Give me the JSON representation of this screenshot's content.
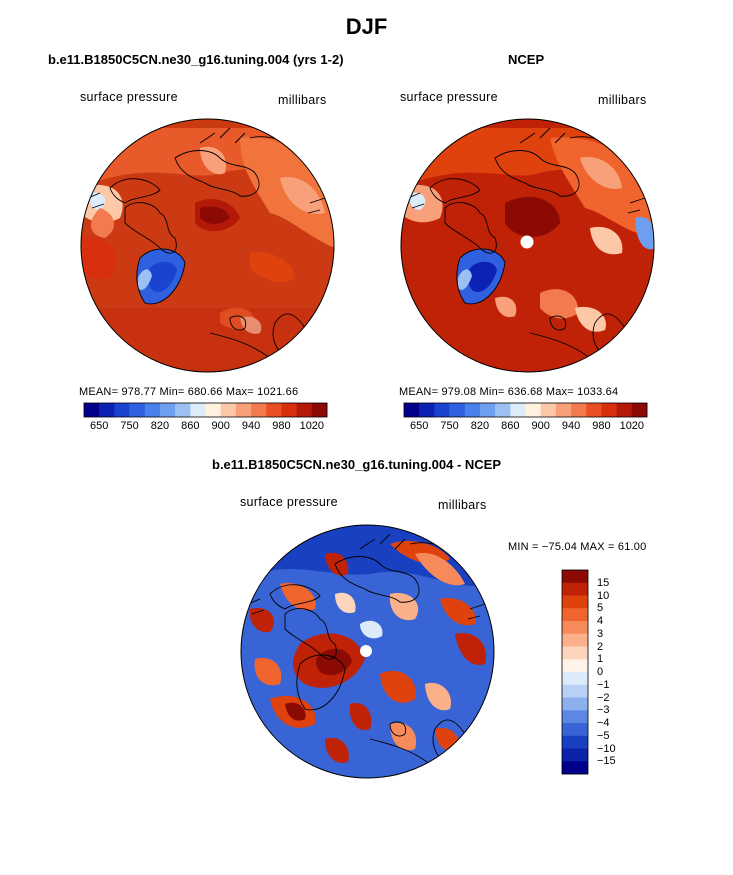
{
  "page": {
    "title": "DJF"
  },
  "panels": [
    {
      "title": "b.e11.B1850C5CN.ne30_g16.tuning.004 (yrs 1-2)",
      "variable": "surface pressure",
      "units": "millibars",
      "stats": "MEAN= 978.77   Min= 680.66   Max= 1021.66"
    },
    {
      "title": "NCEP",
      "variable": "surface pressure",
      "units": "millibars",
      "stats": "MEAN= 979.08   Min= 636.68   Max= 1033.64"
    },
    {
      "title": "b.e11.B1850C5CN.ne30_g16.tuning.004 - NCEP",
      "variable": "surface pressure",
      "units": "millibars",
      "stats": "MIN = −75.04  MAX =   61.00"
    }
  ],
  "horizontal_colorbar": {
    "labels": [
      "650",
      "750",
      "820",
      "860",
      "900",
      "940",
      "980",
      "1020"
    ],
    "colors": [
      "#00008c",
      "#0c22b4",
      "#1a44d0",
      "#2e60e0",
      "#4a80ea",
      "#6e9ef0",
      "#9cc0f4",
      "#dcecfa",
      "#fff0e0",
      "#fcc8a8",
      "#f8a07a",
      "#f37a4e",
      "#ea5026",
      "#d8300e",
      "#b41806",
      "#8c0a04"
    ]
  },
  "vertical_colorbar": {
    "labels": [
      "15",
      "10",
      "5",
      "4",
      "3",
      "2",
      "1",
      "0",
      "−1",
      "−2",
      "−3",
      "−4",
      "−5",
      "−10",
      "−15"
    ],
    "colors": [
      "#8c0a04",
      "#c02208",
      "#e0420e",
      "#f0642e",
      "#f78a5a",
      "#fbb08a",
      "#fdd4bc",
      "#fff2e8",
      "#dceafa",
      "#b8d0f4",
      "#8cb0ee",
      "#5c88e4",
      "#3864d6",
      "#1a40c2",
      "#0c22a8",
      "#00008c"
    ]
  }
}
